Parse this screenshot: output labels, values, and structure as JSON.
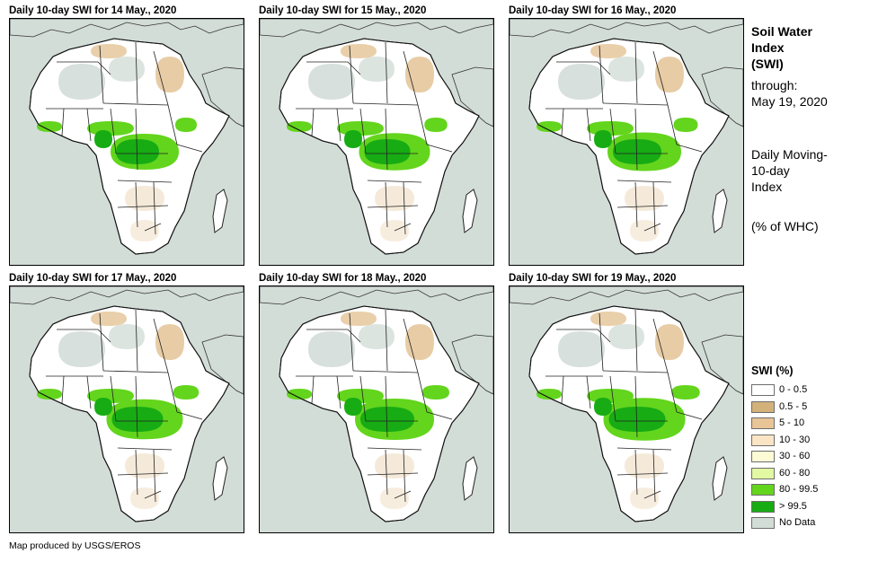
{
  "panels": [
    {
      "title": "Daily 10-day  SWI for 14 May., 2020"
    },
    {
      "title": "Daily 10-day  SWI for 15 May., 2020"
    },
    {
      "title": "Daily 10-day  SWI for 16 May., 2020"
    },
    {
      "title": "Daily 10-day  SWI for 17 May., 2020"
    },
    {
      "title": "Daily 10-day  SWI for 18 May., 2020"
    },
    {
      "title": "Daily 10-day  SWI for 19 May., 2020"
    }
  ],
  "side": {
    "title_lines": [
      "Soil Water",
      "Index",
      "(SWI)"
    ],
    "through_lines": [
      "through:",
      "May 19, 2020"
    ],
    "moving_lines": [
      "Daily Moving-",
      "10-day",
      "Index"
    ],
    "units": "(% of WHC)"
  },
  "legend": {
    "title": "SWI (%)",
    "items": [
      {
        "label": "0 - 0.5",
        "color": "#ffffff"
      },
      {
        "label": "0.5 - 5",
        "color": "#d2b27a"
      },
      {
        "label": "5 - 10",
        "color": "#e8c496"
      },
      {
        "label": "10 - 30",
        "color": "#fbe4c4"
      },
      {
        "label": "30 - 60",
        "color": "#fdfbd6"
      },
      {
        "label": "60 - 80",
        "color": "#e2f8a2"
      },
      {
        "label": "80 - 99.5",
        "color": "#63d51c"
      },
      {
        "label": "> 99.5",
        "color": "#17ac14"
      },
      {
        "label": "No Data",
        "color": "#d3ddd8"
      }
    ]
  },
  "credit": "Map produced by USGS/EROS",
  "colors": {
    "ocean": "#d3ddd8",
    "land": "#ffffff",
    "nodata": "#d3ddd8",
    "dry": "#e3c395",
    "wet": "#63d51c",
    "saturated": "#17ac14"
  }
}
